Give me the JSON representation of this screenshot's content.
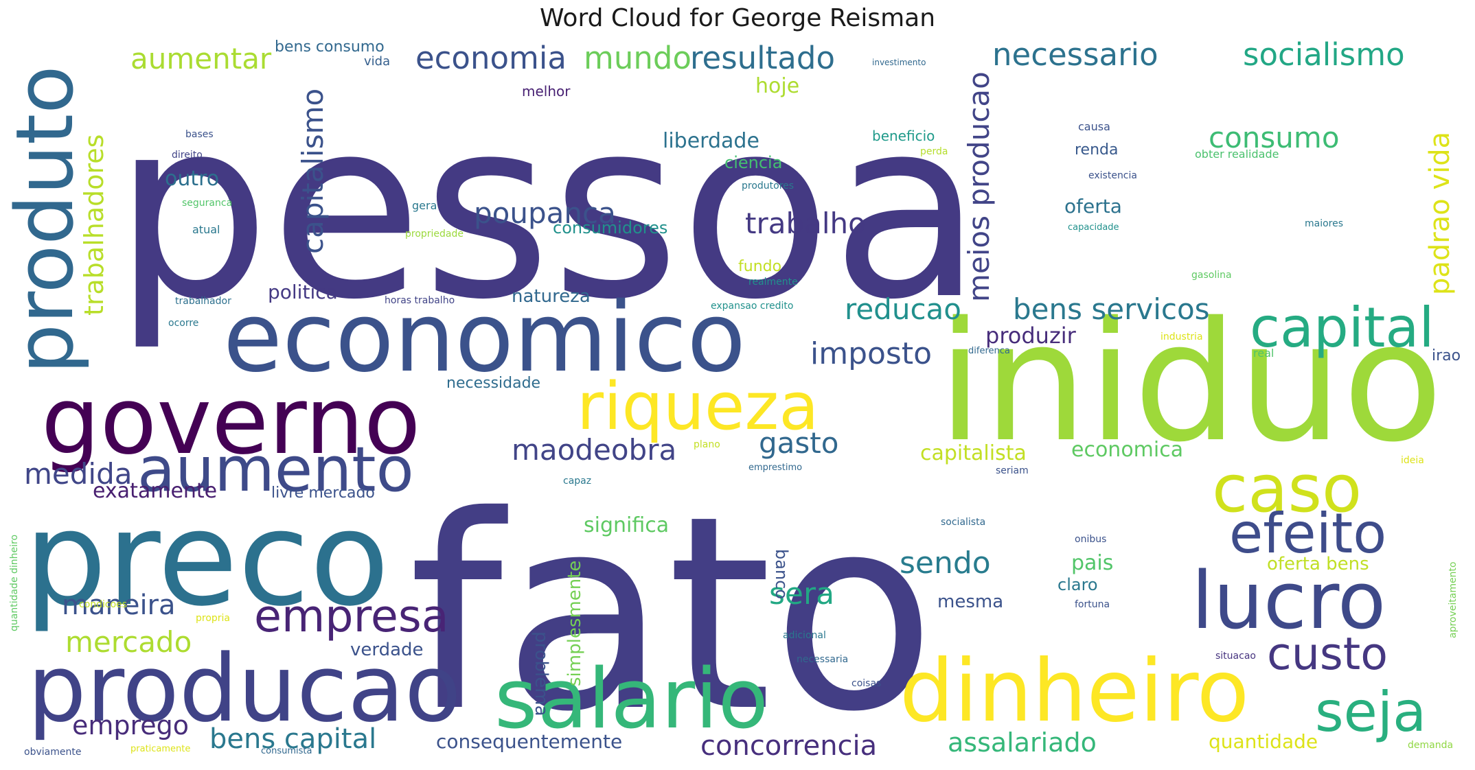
{
  "title": "Word Cloud for George Reisman",
  "words": [
    {
      "text": "pessoa",
      "color": "#443a83"
    },
    {
      "text": "fato",
      "color": "#433e85"
    },
    {
      "text": "iniduo",
      "color": "#9ed93a"
    },
    {
      "text": "economico",
      "color": "#3b528b"
    },
    {
      "text": "preco",
      "color": "#2c718e"
    },
    {
      "text": "produto",
      "color": "#31688e"
    },
    {
      "text": "governo",
      "color": "#440154"
    },
    {
      "text": "producao",
      "color": "#404387"
    },
    {
      "text": "salario",
      "color": "#35b779"
    },
    {
      "text": "dinheiro",
      "color": "#fde725"
    },
    {
      "text": "lucro",
      "color": "#3e4989"
    },
    {
      "text": "aumento",
      "color": "#3e4a89"
    },
    {
      "text": "riqueza",
      "color": "#fde725"
    },
    {
      "text": "caso",
      "color": "#d0e11c"
    },
    {
      "text": "capital",
      "color": "#25ab82"
    },
    {
      "text": "efeito",
      "color": "#3e4c8a"
    },
    {
      "text": "seja",
      "color": "#29af7f"
    },
    {
      "text": "custo",
      "color": "#453781"
    },
    {
      "text": "empresa",
      "color": "#482475"
    },
    {
      "text": "economia",
      "color": "#3b528b"
    },
    {
      "text": "mundo",
      "color": "#6ccd5a"
    },
    {
      "text": "resultado",
      "color": "#2e6e8e"
    },
    {
      "text": "necessario",
      "color": "#2c728e"
    },
    {
      "text": "socialismo",
      "color": "#22a785"
    },
    {
      "text": "aumentar",
      "color": "#aadc32"
    },
    {
      "text": "consumo",
      "color": "#3dbc74"
    },
    {
      "text": "trabalho",
      "color": "#443983"
    },
    {
      "text": "poupanca",
      "color": "#3b528b"
    },
    {
      "text": "capitalismo",
      "color": "#3b528b"
    },
    {
      "text": "trabalhadores",
      "color": "#b8de29"
    },
    {
      "text": "padrao vida",
      "color": "#dde318"
    },
    {
      "text": "meios producao",
      "color": "#414487"
    },
    {
      "text": "reducao",
      "color": "#21908d"
    },
    {
      "text": "bens servicos",
      "color": "#2a788e"
    },
    {
      "text": "imposto",
      "color": "#3b528b"
    },
    {
      "text": "produzir",
      "color": "#472d7b"
    },
    {
      "text": "medida",
      "color": "#404688"
    },
    {
      "text": "exatamente",
      "color": "#481f70"
    },
    {
      "text": "maodeobra",
      "color": "#414487"
    },
    {
      "text": "gasto",
      "color": "#31688e"
    },
    {
      "text": "capitalista",
      "color": "#c2df23"
    },
    {
      "text": "economica",
      "color": "#5ec962"
    },
    {
      "text": "maneira",
      "color": "#3b528b"
    },
    {
      "text": "mercado",
      "color": "#addc30"
    },
    {
      "text": "sendo",
      "color": "#287c8e"
    },
    {
      "text": "sera",
      "color": "#22a884"
    },
    {
      "text": "emprego",
      "color": "#472c7a"
    },
    {
      "text": "bens capital",
      "color": "#2a788e"
    },
    {
      "text": "concorrencia",
      "color": "#472f7d"
    },
    {
      "text": "assalariado",
      "color": "#35b779"
    },
    {
      "text": "consequentemente",
      "color": "#3b528b"
    },
    {
      "text": "quantidade",
      "color": "#dde318"
    },
    {
      "text": "verdade",
      "color": "#3b528b"
    },
    {
      "text": "politica",
      "color": "#443983"
    },
    {
      "text": "natureza",
      "color": "#31688e"
    },
    {
      "text": "liberdade",
      "color": "#2c728e"
    },
    {
      "text": "ciencia",
      "color": "#44bf70"
    },
    {
      "text": "consumidores",
      "color": "#21918c"
    },
    {
      "text": "outro",
      "color": "#2d708e"
    },
    {
      "text": "hoje",
      "color": "#addc30"
    },
    {
      "text": "livre mercado",
      "color": "#3b528b"
    },
    {
      "text": "significa",
      "color": "#5ec962"
    },
    {
      "text": "problema",
      "color": "#3b528b"
    },
    {
      "text": "simplesmente",
      "color": "#75d054"
    },
    {
      "text": "oferta bens",
      "color": "#c0df25"
    },
    {
      "text": "pais",
      "color": "#52c569"
    },
    {
      "text": "claro",
      "color": "#2a788e"
    },
    {
      "text": "mesma",
      "color": "#3b528b"
    },
    {
      "text": "oferta",
      "color": "#2c728e"
    },
    {
      "text": "renda",
      "color": "#38598c"
    },
    {
      "text": "beneficio",
      "color": "#1f9a8a"
    },
    {
      "text": "necessidade",
      "color": "#2f6c8e"
    },
    {
      "text": "bens consumo",
      "color": "#31688e"
    },
    {
      "text": "melhor",
      "color": "#482173"
    },
    {
      "text": "vida",
      "color": "#355f8d"
    },
    {
      "text": "banco",
      "color": "#3b528b"
    },
    {
      "text": "real",
      "color": "#50c46a"
    },
    {
      "text": "irao",
      "color": "#3b528b"
    },
    {
      "text": "obter realidade",
      "color": "#4ac16d"
    },
    {
      "text": "seguranca",
      "color": "#52c569"
    },
    {
      "text": "atual",
      "color": "#2a788e"
    },
    {
      "text": "propriedade",
      "color": "#9bd93c"
    },
    {
      "text": "gera",
      "color": "#2a788e"
    },
    {
      "text": "fundo",
      "color": "#c2df23"
    },
    {
      "text": "industria",
      "color": "#dde318"
    },
    {
      "text": "expansao credito",
      "color": "#21918c"
    },
    {
      "text": "horas trabalho",
      "color": "#414487"
    },
    {
      "text": "trabalhador",
      "color": "#2d708e"
    },
    {
      "text": "adicional",
      "color": "#2a788e"
    },
    {
      "text": "necessaria",
      "color": "#31688e"
    },
    {
      "text": "coisas",
      "color": "#3b528b"
    },
    {
      "text": "situacao",
      "color": "#46337f"
    },
    {
      "text": "demanda",
      "color": "#90d743"
    },
    {
      "text": "obviamente",
      "color": "#3b528b"
    },
    {
      "text": "praticamente",
      "color": "#dde318"
    },
    {
      "text": "consumista",
      "color": "#31688e"
    },
    {
      "text": "capacidade",
      "color": "#21918c"
    },
    {
      "text": "existencia",
      "color": "#3b528b"
    },
    {
      "text": "maiores",
      "color": "#2a788e"
    },
    {
      "text": "gasolina",
      "color": "#5ec962"
    },
    {
      "text": "fortuna",
      "color": "#3b528b"
    },
    {
      "text": "diferenca",
      "color": "#31688e"
    },
    {
      "text": "causa",
      "color": "#3b528b"
    },
    {
      "text": "perda",
      "color": "#b5de2b"
    },
    {
      "text": "produtores",
      "color": "#2a788e"
    },
    {
      "text": "realmente",
      "color": "#21918c"
    },
    {
      "text": "direito",
      "color": "#414487"
    },
    {
      "text": "bases",
      "color": "#3b528b"
    },
    {
      "text": "seriam",
      "color": "#3b528b"
    },
    {
      "text": "socialista",
      "color": "#31688e"
    },
    {
      "text": "onibus",
      "color": "#3b528b"
    },
    {
      "text": "capaz",
      "color": "#2a788e"
    },
    {
      "text": "emprestimo",
      "color": "#31688e"
    },
    {
      "text": "plano",
      "color": "#c2df23"
    },
    {
      "text": "ideia",
      "color": "#dde318"
    },
    {
      "text": "propria",
      "color": "#dde318"
    },
    {
      "text": "condicoes",
      "color": "#c2df23"
    },
    {
      "text": "quantidade dinheiro",
      "color": "#5ec962"
    },
    {
      "text": "aproveitamento",
      "color": "#75d054"
    },
    {
      "text": "investimento",
      "color": "#31688e"
    },
    {
      "text": "ocorre",
      "color": "#2a788e"
    }
  ]
}
